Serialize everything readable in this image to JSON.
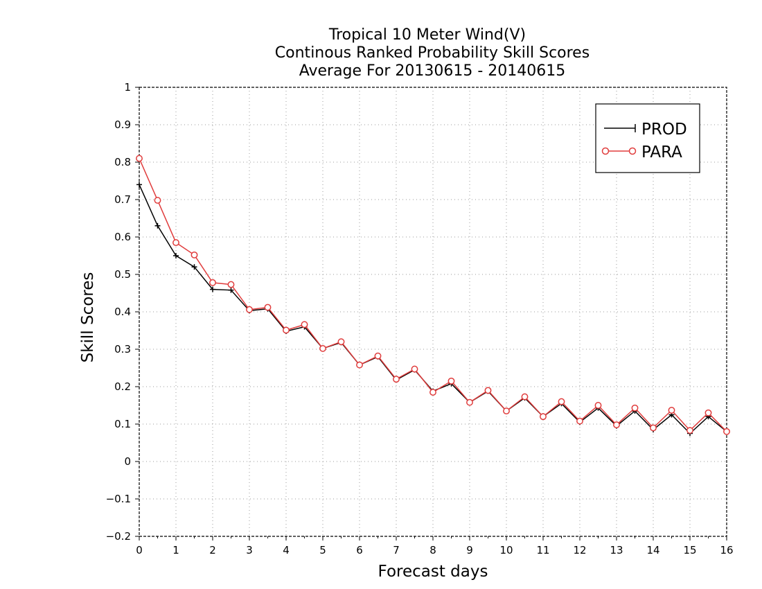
{
  "chart_data": {
    "type": "line",
    "title": [
      "Tropical 10 Meter Wind(V)",
      "Continous Ranked Probability Skill Scores",
      "Average For 20130615 - 20140615"
    ],
    "xlabel": "Forecast days",
    "ylabel": "Skill Scores",
    "xlim": [
      0,
      16
    ],
    "ylim": [
      -0.2,
      1
    ],
    "xticks": [
      0,
      1,
      2,
      3,
      4,
      5,
      6,
      7,
      8,
      9,
      10,
      11,
      12,
      13,
      14,
      15,
      16
    ],
    "yticks": [
      -0.2,
      -0.1,
      0,
      0.1,
      0.2,
      0.3,
      0.4,
      0.5,
      0.6,
      0.7,
      0.8,
      0.9,
      1
    ],
    "ytick_labels": [
      "−0.2",
      "−0.1",
      "0",
      "0.1",
      "0.2",
      "0.3",
      "0.4",
      "0.5",
      "0.6",
      "0.7",
      "0.8",
      "0.9",
      "1"
    ],
    "grid": true,
    "legend_position": "top-right",
    "x": [
      0,
      0.5,
      1,
      1.5,
      2,
      2.5,
      3,
      3.5,
      4,
      4.5,
      5,
      5.5,
      6,
      6.5,
      7,
      7.5,
      8,
      8.5,
      9,
      9.5,
      10,
      10.5,
      11,
      11.5,
      12,
      12.5,
      13,
      13.5,
      14,
      14.5,
      15,
      15.5,
      16
    ],
    "series": [
      {
        "name": "PROD",
        "color": "#000000",
        "marker": "plus",
        "values": [
          0.74,
          0.63,
          0.55,
          0.52,
          0.46,
          0.458,
          0.403,
          0.408,
          0.348,
          0.36,
          0.302,
          0.318,
          0.258,
          0.28,
          0.218,
          0.245,
          0.188,
          0.208,
          0.158,
          0.188,
          0.135,
          0.17,
          0.12,
          0.155,
          0.105,
          0.143,
          0.095,
          0.135,
          0.085,
          0.125,
          0.075,
          0.12,
          0.08
        ]
      },
      {
        "name": "PARA",
        "color": "#e03c3c",
        "marker": "circle",
        "values": [
          0.81,
          0.698,
          0.585,
          0.552,
          0.478,
          0.473,
          0.406,
          0.412,
          0.351,
          0.366,
          0.302,
          0.32,
          0.258,
          0.282,
          0.22,
          0.247,
          0.185,
          0.215,
          0.158,
          0.19,
          0.135,
          0.173,
          0.12,
          0.16,
          0.108,
          0.15,
          0.098,
          0.143,
          0.09,
          0.137,
          0.083,
          0.13,
          0.08
        ]
      }
    ]
  }
}
